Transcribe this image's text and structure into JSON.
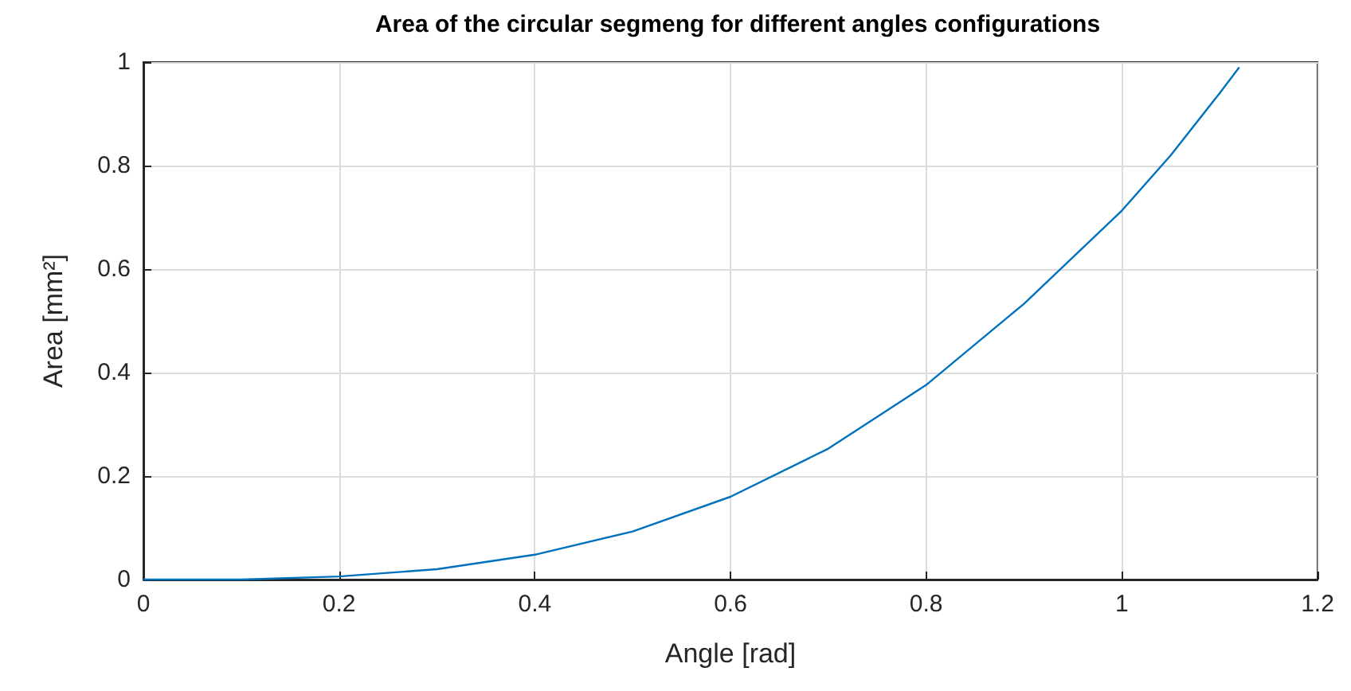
{
  "chart_data": {
    "type": "line",
    "title": "Area of the circular segmeng for different angles configurations",
    "xlabel": "Angle [rad]",
    "ylabel": "Area [mm²]",
    "x": [
      0,
      0.1,
      0.2,
      0.3,
      0.4,
      0.5,
      0.6,
      0.7,
      0.8,
      0.9,
      1.0,
      1.05,
      1.1,
      1.12
    ],
    "series": [
      {
        "color": "#0072bd",
        "values": [
          0,
          0,
          0.006,
          0.02,
          0.048,
          0.093,
          0.16,
          0.253,
          0.376,
          0.533,
          0.713,
          0.82,
          0.94,
          0.99
        ]
      }
    ],
    "xlim": [
      0,
      1.2
    ],
    "xticks": [
      0,
      0.2,
      0.4,
      0.6,
      0.8,
      1,
      1.2
    ],
    "ylim": [
      0,
      1
    ],
    "yticks": [
      0,
      0.2,
      0.4,
      0.6,
      0.8,
      1
    ],
    "grid": true,
    "marker": "none",
    "line_style": "solid"
  }
}
